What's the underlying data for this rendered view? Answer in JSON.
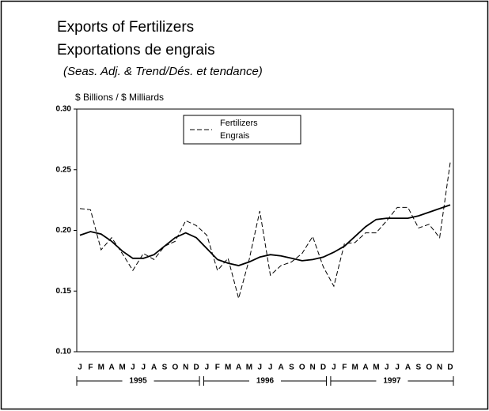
{
  "chart_data": {
    "type": "line",
    "title": "Exports of Fertilizers",
    "title_fr": "Exportations de engrais",
    "subtitle": "(Seas. Adj. & Trend/Dés. et tendance)",
    "y_label": "$ Billions / $ Milliards",
    "categories": [
      "J",
      "F",
      "M",
      "A",
      "M",
      "J",
      "J",
      "A",
      "S",
      "O",
      "N",
      "D",
      "J",
      "F",
      "M",
      "A",
      "M",
      "J",
      "J",
      "A",
      "S",
      "O",
      "N",
      "D",
      "J",
      "F",
      "M",
      "A",
      "M",
      "J",
      "J",
      "A",
      "S",
      "O",
      "N",
      "D"
    ],
    "groups": [
      "1995",
      "1996",
      "1997"
    ],
    "series": [
      {
        "name": "Fertilizers",
        "name_fr": "Engrais",
        "color": "#000",
        "dash": true,
        "values": [
          0.218,
          0.217,
          0.184,
          0.194,
          0.181,
          0.167,
          0.181,
          0.176,
          0.187,
          0.191,
          0.208,
          0.204,
          0.196,
          0.167,
          0.177,
          0.144,
          0.176,
          0.216,
          0.163,
          0.171,
          0.174,
          0.181,
          0.195,
          0.17,
          0.154,
          0.189,
          0.19,
          0.198,
          0.198,
          0.208,
          0.219,
          0.219,
          0.202,
          0.205,
          0.194,
          0.256
        ]
      },
      {
        "color": "#000",
        "dash": false,
        "values": [
          0.196,
          0.199,
          0.197,
          0.191,
          0.183,
          0.177,
          0.177,
          0.18,
          0.187,
          0.194,
          0.198,
          0.194,
          0.185,
          0.176,
          0.173,
          0.171,
          0.174,
          0.178,
          0.18,
          0.179,
          0.177,
          0.175,
          0.176,
          0.178,
          0.182,
          0.187,
          0.195,
          0.203,
          0.209,
          0.21,
          0.21,
          0.21,
          0.212,
          0.215,
          0.218,
          0.221
        ]
      }
    ],
    "ylim": [
      0.1,
      0.3
    ],
    "yticks": [
      {
        "value": 0.1,
        "label": "0.10"
      },
      {
        "value": 0.15,
        "label": "0.15"
      },
      {
        "value": 0.2,
        "label": "0.20"
      },
      {
        "value": 0.25,
        "label": "0.25"
      },
      {
        "value": 0.3,
        "label": "0.30"
      }
    ]
  }
}
